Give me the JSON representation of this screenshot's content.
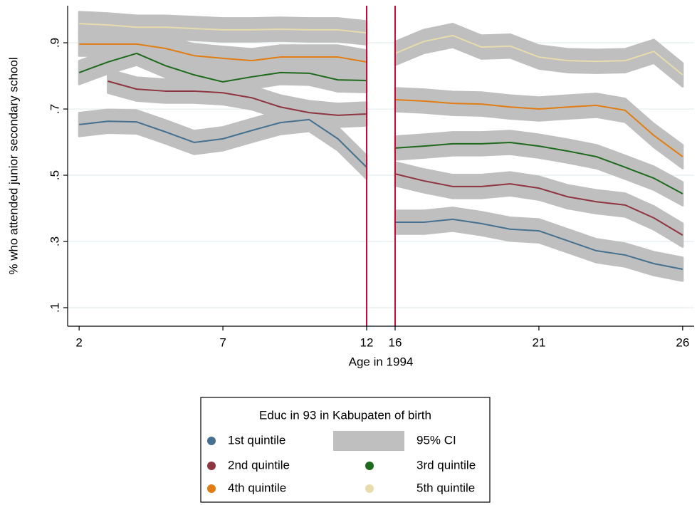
{
  "chart_data": {
    "type": "line",
    "y_label": "% who attended junior secondary school",
    "x_label": "Age in 1994",
    "x": [
      2,
      3,
      4,
      5,
      6,
      7,
      8,
      9,
      10,
      11,
      12,
      16,
      17,
      18,
      19,
      20,
      21,
      22,
      23,
      24,
      25,
      26
    ],
    "axis_break": [
      12,
      16
    ],
    "vlines": [
      12,
      16
    ],
    "vline_color": "#c0103a",
    "xlim": [
      1.6,
      26.4
    ],
    "xticks": [
      2,
      7,
      12,
      16,
      21,
      26
    ],
    "ylim": [
      0.044,
      1.012
    ],
    "yticks": [
      {
        "value": 0.1,
        "label": ".1"
      },
      {
        "value": 0.3,
        "label": ".3"
      },
      {
        "value": 0.5,
        "label": ".5"
      },
      {
        "value": 0.7,
        "label": ".7"
      },
      {
        "value": 0.9,
        "label": ".9"
      }
    ],
    "grid": true,
    "ci_halfwidth": 0.035,
    "ci_color": "#bfbfbf",
    "legend": {
      "title": "Educ in 93 in Kabupaten of birth",
      "ci_label": "95% CI"
    },
    "series": [
      {
        "name": "1st quintile",
        "color": "#46708f",
        "values": [
          0.653,
          0.663,
          0.661,
          0.631,
          0.599,
          0.61,
          0.635,
          0.659,
          0.668,
          0.61,
          0.524,
          0.358,
          0.358,
          0.367,
          0.354,
          0.337,
          0.332,
          0.302,
          0.272,
          0.259,
          0.233,
          0.216
        ]
      },
      {
        "name": "2nd quintile",
        "color": "#8f3540",
        "values": [
          null,
          0.784,
          0.76,
          0.754,
          0.754,
          0.749,
          0.734,
          0.706,
          0.689,
          0.681,
          0.685,
          0.504,
          0.483,
          0.466,
          0.466,
          0.474,
          0.461,
          0.435,
          0.42,
          0.41,
          0.371,
          0.319
        ]
      },
      {
        "name": "3rd quintile",
        "color": "#1d6a1d",
        "values": [
          0.81,
          0.842,
          0.868,
          0.831,
          0.803,
          0.782,
          0.797,
          0.81,
          0.808,
          0.788,
          0.786,
          0.582,
          0.588,
          0.595,
          0.595,
          0.599,
          0.588,
          0.573,
          0.556,
          0.524,
          0.491,
          0.444
        ]
      },
      {
        "name": "4th quintile",
        "color": "#e27d13",
        "values": [
          0.896,
          0.896,
          0.896,
          0.883,
          0.861,
          0.853,
          0.846,
          0.857,
          0.857,
          0.857,
          0.842,
          0.728,
          0.724,
          0.717,
          0.715,
          0.706,
          0.7,
          0.706,
          0.711,
          0.696,
          0.62,
          0.556
        ]
      },
      {
        "name": "5th quintile",
        "color": "#e8dcad",
        "values": [
          0.958,
          0.954,
          0.947,
          0.947,
          0.943,
          0.939,
          0.939,
          0.941,
          0.939,
          0.939,
          0.93,
          0.868,
          0.904,
          0.922,
          0.887,
          0.89,
          0.857,
          0.846,
          0.844,
          0.846,
          0.874,
          0.803
        ]
      }
    ]
  }
}
